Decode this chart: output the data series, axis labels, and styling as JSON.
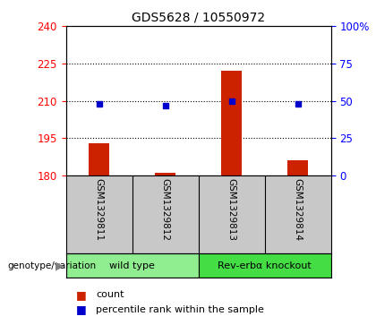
{
  "title": "GDS5628 / 10550972",
  "samples": [
    "GSM1329811",
    "GSM1329812",
    "GSM1329813",
    "GSM1329814"
  ],
  "group_labels": [
    "wild type",
    "Rev-erbα knockout"
  ],
  "bar_values": [
    193,
    181,
    222,
    186
  ],
  "bar_bottom": 180,
  "dot_values": [
    48,
    47,
    50,
    48
  ],
  "left_ylim": [
    180,
    240
  ],
  "right_ylim": [
    0,
    100
  ],
  "left_yticks": [
    180,
    195,
    210,
    225,
    240
  ],
  "right_yticks": [
    0,
    25,
    50,
    75,
    100
  ],
  "right_yticklabels": [
    "0",
    "25",
    "50",
    "75",
    "100%"
  ],
  "bar_color": "#CC2200",
  "dot_color": "#0000CC",
  "sample_bg_color": "#C8C8C8",
  "wt_color": "#90EE90",
  "rev_color": "#44DD44",
  "legend_count_label": "count",
  "legend_pct_label": "percentile rank within the sample",
  "genotype_label": "genotype/variation"
}
